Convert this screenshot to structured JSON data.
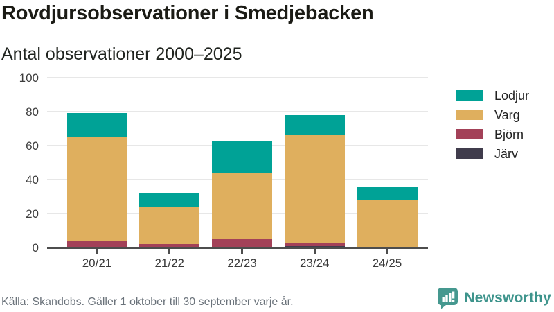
{
  "header": {
    "title": "Rovdjursobservationer i Smedjebacken",
    "subtitle": "Antal observationer 2000–2025"
  },
  "footer": {
    "source": "Källa: Skandobs. Gäller 1 oktober till 30 september varje år.",
    "brand": "Newsworthy"
  },
  "colors": {
    "lodjur": "#00a296",
    "varg": "#dfaf5e",
    "bjorn": "#a34158",
    "jarv": "#403c4c",
    "grid": "#e7e7e7",
    "axis": "#4d4d4d",
    "brand_teal": "#3e948c",
    "brand_icon_teal": "#45988f"
  },
  "chart_data": {
    "type": "bar",
    "stacked": true,
    "title": "Rovdjursobservationer i Smedjebacken",
    "subtitle": "Antal observationer 2000–2025",
    "categories": [
      "20/21",
      "21/22",
      "22/23",
      "23/24",
      "24/25"
    ],
    "series": [
      {
        "name": "Lodjur",
        "color": "#00a296",
        "values": [
          14,
          8,
          19,
          12,
          8
        ]
      },
      {
        "name": "Varg",
        "color": "#dfaf5e",
        "values": [
          61,
          22,
          39,
          63,
          28
        ]
      },
      {
        "name": "Björn",
        "color": "#a34158",
        "values": [
          4,
          2,
          5,
          2,
          0
        ]
      },
      {
        "name": "Järv",
        "color": "#403c4c",
        "values": [
          0,
          0,
          0,
          1,
          0
        ]
      }
    ],
    "stack_order_bottom_to_top": [
      "Järv",
      "Björn",
      "Varg",
      "Lodjur"
    ],
    "totals": [
      79,
      32,
      63,
      78,
      36
    ],
    "xlabel": "",
    "ylabel": "",
    "ylim": [
      0,
      100
    ],
    "yticks": [
      0,
      20,
      40,
      60,
      80,
      100
    ],
    "grid": true,
    "legend_position": "right"
  }
}
